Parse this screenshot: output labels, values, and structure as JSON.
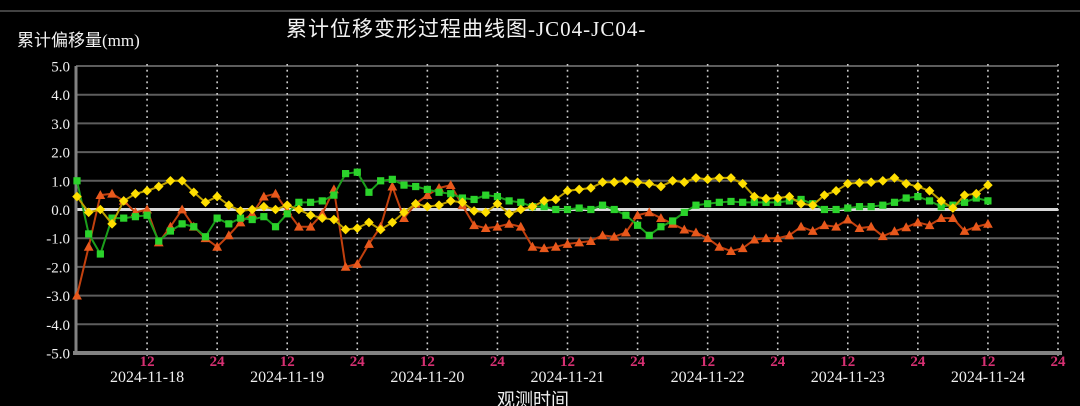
{
  "chart_data": {
    "type": "line",
    "title": "累计位移变形过程曲线图-JC04-JC04-",
    "ylabel": "累计偏移量(mm)",
    "xlabel": "观测时间",
    "ylim": [
      -5.0,
      5.0
    ],
    "y_ticks": [
      "5.0",
      "4.0",
      "3.0",
      "2.0",
      "1.0",
      "0.0",
      "-1.0",
      "-2.0",
      "-3.0",
      "-4.0",
      "-5.0"
    ],
    "x_days": [
      "2024-11-18",
      "2024-11-19",
      "2024-11-20",
      "2024-11-21",
      "2024-11-22",
      "2024-11-23",
      "2024-11-24"
    ],
    "hour_labels": [
      "12",
      "24"
    ],
    "hours_per_point": 2,
    "grid": "on",
    "legend": "none",
    "series": [
      {
        "name": "yellow-diamond-series",
        "marker": "diamond",
        "color": "#ffdf00",
        "line_color": "#bfa000",
        "values": [
          0.45,
          -0.1,
          0.0,
          -0.5,
          0.3,
          0.55,
          0.65,
          0.8,
          1.0,
          1.0,
          0.6,
          0.25,
          0.45,
          0.15,
          -0.05,
          0.0,
          0.1,
          0.0,
          0.15,
          0.0,
          -0.2,
          -0.3,
          -0.35,
          -0.7,
          -0.65,
          -0.45,
          -0.7,
          -0.45,
          -0.1,
          0.2,
          0.1,
          0.15,
          0.3,
          0.25,
          -0.05,
          -0.1,
          0.2,
          -0.15,
          0.0,
          0.1,
          0.3,
          0.35,
          0.65,
          0.7,
          0.75,
          0.95,
          0.95,
          1.0,
          0.95,
          0.9,
          0.8,
          1.0,
          0.95,
          1.1,
          1.05,
          1.1,
          1.1,
          0.9,
          0.45,
          0.38,
          0.4,
          0.45,
          0.2,
          0.15,
          0.5,
          0.65,
          0.9,
          0.93,
          0.95,
          1.0,
          1.1,
          0.9,
          0.8,
          0.65,
          0.3,
          0.05,
          0.5,
          0.55,
          0.85
        ]
      },
      {
        "name": "green-square-series",
        "marker": "square",
        "color": "#2bd32b",
        "line_color": "#1b9e1b",
        "values": [
          1.0,
          -0.85,
          -1.55,
          -0.3,
          -0.3,
          -0.25,
          -0.2,
          -1.1,
          -0.75,
          -0.5,
          -0.6,
          -0.95,
          -0.3,
          -0.5,
          -0.3,
          -0.35,
          -0.25,
          -0.6,
          -0.15,
          0.25,
          0.25,
          0.3,
          0.5,
          1.25,
          1.3,
          0.6,
          1.0,
          1.05,
          0.85,
          0.8,
          0.7,
          0.6,
          0.55,
          0.4,
          0.35,
          0.5,
          0.45,
          0.3,
          0.25,
          0.1,
          0.1,
          0.0,
          0.0,
          0.05,
          0.0,
          0.15,
          0.0,
          -0.2,
          -0.55,
          -0.9,
          -0.6,
          -0.4,
          -0.1,
          0.15,
          0.2,
          0.25,
          0.28,
          0.25,
          0.25,
          0.25,
          0.25,
          0.3,
          0.35,
          0.2,
          0.0,
          0.0,
          0.05,
          0.1,
          0.1,
          0.15,
          0.25,
          0.4,
          0.45,
          0.3,
          0.1,
          0.15,
          0.25,
          0.4,
          0.3
        ]
      },
      {
        "name": "orange-triangle-series",
        "marker": "triangle",
        "color": "#e8581c",
        "line_color": "#c2400e",
        "values": [
          -3.0,
          -1.3,
          0.5,
          0.55,
          0.3,
          -0.1,
          0.0,
          -1.15,
          -0.6,
          0.0,
          -0.6,
          -1.0,
          -1.3,
          -0.9,
          -0.45,
          -0.15,
          0.45,
          0.55,
          -0.05,
          -0.6,
          -0.6,
          -0.15,
          0.7,
          -2.0,
          -1.9,
          -1.2,
          -0.6,
          0.8,
          -0.3,
          0.2,
          0.5,
          0.75,
          0.85,
          0.15,
          -0.55,
          -0.65,
          -0.6,
          -0.5,
          -0.6,
          -1.3,
          -1.35,
          -1.3,
          -1.2,
          -1.15,
          -1.1,
          -0.9,
          -0.95,
          -0.8,
          -0.2,
          -0.1,
          -0.3,
          -0.5,
          -0.7,
          -0.8,
          -1.0,
          -1.3,
          -1.45,
          -1.35,
          -1.05,
          -1.0,
          -1.0,
          -0.9,
          -0.6,
          -0.75,
          -0.55,
          -0.6,
          -0.35,
          -0.65,
          -0.6,
          -0.93,
          -0.76,
          -0.62,
          -0.45,
          -0.55,
          -0.3,
          -0.3,
          -0.75,
          -0.6,
          -0.5
        ]
      }
    ],
    "colors": {
      "background": "#000000",
      "grid_line": "#5d5d5d",
      "zero_line": "#d9d9d9",
      "axis_line": "#828282",
      "vertical_dotted": "#cfcfcf",
      "hour_label": "#d63072",
      "date_label": "#efefef",
      "text": "#f2f2f2"
    }
  }
}
